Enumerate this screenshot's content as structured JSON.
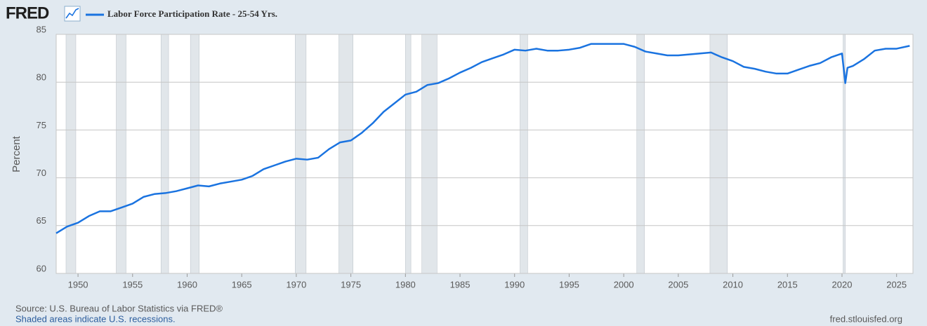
{
  "chart_data": {
    "type": "line",
    "logo": "FRED",
    "y_label": "Percent",
    "source": "Source: U.S. Bureau of Labor Statistics via FRED®",
    "note": "Shaded areas indicate U.S. recessions.",
    "url": "fred.stlouisfed.org",
    "x": [
      1948,
      1949,
      1950,
      1951,
      1952,
      1953,
      1954,
      1955,
      1956,
      1957,
      1958,
      1959,
      1960,
      1961,
      1962,
      1963,
      1964,
      1965,
      1966,
      1967,
      1968,
      1969,
      1970,
      1971,
      1972,
      1973,
      1974,
      1975,
      1976,
      1977,
      1978,
      1979,
      1980,
      1981,
      1982,
      1983,
      1984,
      1985,
      1986,
      1987,
      1988,
      1989,
      1990,
      1991,
      1992,
      1993,
      1994,
      1995,
      1996,
      1997,
      1998,
      1999,
      2000,
      2001,
      2002,
      2003,
      2004,
      2005,
      2006,
      2007,
      2008,
      2009,
      2010,
      2011,
      2012,
      2013,
      2014,
      2015,
      2016,
      2017,
      2018,
      2019,
      2020,
      2020.3,
      2020.5,
      2021,
      2022,
      2023,
      2024,
      2025,
      2026.2
    ],
    "series": [
      {
        "name": "Labor Force Participation Rate - 25-54 Yrs.",
        "color": "#1a73e0",
        "values": [
          64.2,
          64.9,
          65.3,
          66.0,
          66.5,
          66.5,
          66.9,
          67.3,
          68.0,
          68.3,
          68.4,
          68.6,
          68.9,
          69.2,
          69.1,
          69.4,
          69.6,
          69.8,
          70.2,
          70.9,
          71.3,
          71.7,
          72.0,
          71.9,
          72.1,
          73.0,
          73.7,
          73.9,
          74.7,
          75.7,
          76.9,
          77.8,
          78.7,
          79.0,
          79.7,
          79.9,
          80.4,
          81.0,
          81.5,
          82.1,
          82.5,
          82.9,
          83.4,
          83.3,
          83.5,
          83.3,
          83.3,
          83.4,
          83.6,
          84.0,
          84.0,
          84.0,
          84.0,
          83.7,
          83.2,
          83.0,
          82.8,
          82.8,
          82.9,
          83.0,
          83.1,
          82.6,
          82.2,
          81.6,
          81.4,
          81.1,
          80.9,
          80.9,
          81.3,
          81.7,
          82.0,
          82.6,
          83.0,
          79.9,
          81.5,
          81.7,
          82.4,
          83.3,
          83.5,
          83.5,
          83.8
        ]
      }
    ],
    "recessions": [
      [
        1948.9,
        1949.8
      ],
      [
        1953.5,
        1954.4
      ],
      [
        1957.6,
        1958.3
      ],
      [
        1960.3,
        1961.1
      ],
      [
        1969.9,
        1970.9
      ],
      [
        1973.9,
        1975.2
      ],
      [
        1980.0,
        1980.5
      ],
      [
        1981.5,
        1982.9
      ],
      [
        1990.5,
        1991.2
      ],
      [
        2001.2,
        2001.9
      ],
      [
        2007.9,
        2009.5
      ],
      [
        2020.1,
        2020.3
      ]
    ],
    "recession_color": "#e1e6ea",
    "xlim": [
      1948,
      2026.5
    ],
    "xticks": [
      1950,
      1955,
      1960,
      1965,
      1970,
      1975,
      1980,
      1985,
      1990,
      1995,
      2000,
      2005,
      2010,
      2015,
      2020,
      2025
    ],
    "ylim": [
      60,
      85
    ],
    "yticks": [
      60,
      65,
      70,
      75,
      80,
      85
    ],
    "grid": true
  }
}
